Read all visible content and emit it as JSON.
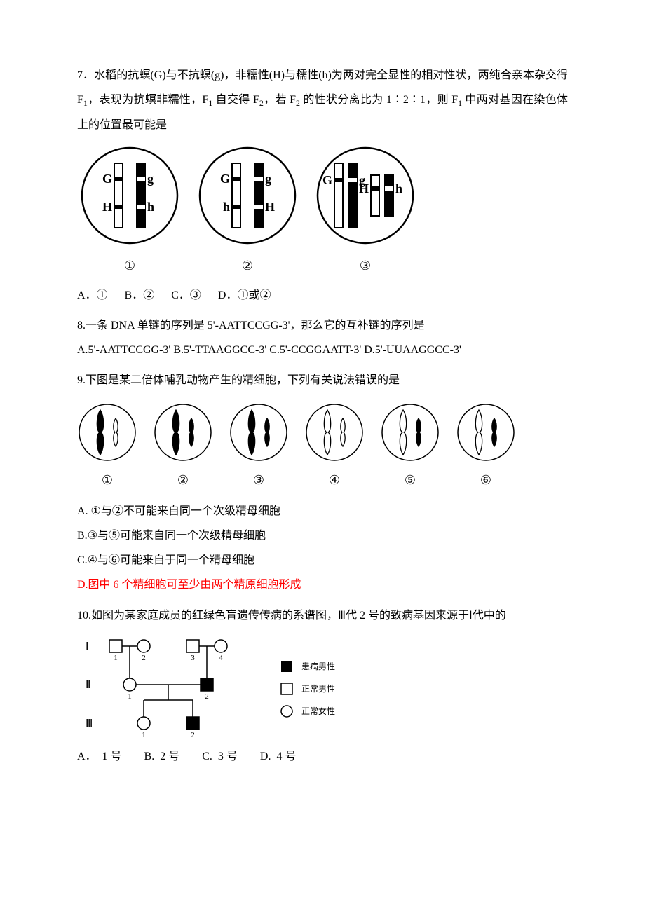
{
  "colors": {
    "text": "#000000",
    "red": "#ff0000",
    "bg": "#ffffff",
    "chrom_white": "#ffffff",
    "chrom_black": "#000000",
    "line": "#000000"
  },
  "q7": {
    "number": "7．",
    "text_before_f1": "水稻的抗螟(G)与不抗螟(g)，非糯性(H)与糯性(h)为两对完全显性的相对性状，两纯合亲本杂交得 F",
    "f1": "1",
    "text_mid1": "，表现为抗螟非糯性，F",
    "f1b": "1",
    "text_mid2": " 自交得 F",
    "f2": "2",
    "text_mid3": "，若 F",
    "f2b": "2",
    "text_mid4": " 的性状分离比为 1∶2∶1，则 F",
    "f1c": "1",
    "text_after": " 中两对基因在染色体上的位置最可能是",
    "diagrams": [
      {
        "left_top": "G",
        "left_bot": "H",
        "right_top": "g",
        "right_bot": "h",
        "label": "①",
        "same_pair": true
      },
      {
        "left_top": "G",
        "left_bot": "h",
        "right_top": "g",
        "right_bot": "H",
        "label": "②",
        "same_pair": true
      },
      {
        "left_top": "G",
        "left_bot": "H",
        "right_top": "g",
        "right_bot": "h",
        "label": "③",
        "same_pair": false
      }
    ],
    "options": "A．①      B．②      C．③      D．①或②"
  },
  "q8": {
    "number": "8.",
    "text": "一条 DNA 单链的序列是 5'-AATTCCGG-3'，那么它的互补链的序列是",
    "options": "A.5'-AATTCCGG-3'  B.5'-TTAAGGCC-3'   C.5'-CCGGAATT-3'  D.5'-UUAAGGCC-3'"
  },
  "q9": {
    "number": "9.",
    "text": "下图是某二倍体哺乳动物产生的精细胞，下列有关说法错误的是",
    "sperm": [
      {
        "label": "①",
        "big_black": true,
        "small_black": false
      },
      {
        "label": "②",
        "big_black": true,
        "small_black": true
      },
      {
        "label": "③",
        "big_black": true,
        "small_black": true
      },
      {
        "label": "④",
        "big_black": false,
        "small_black": false
      },
      {
        "label": "⑤",
        "big_black": false,
        "small_black": true
      },
      {
        "label": "⑥",
        "big_black": false,
        "small_black": true
      }
    ],
    "optA": "A. ①与②不可能来自同一个次级精母细胞",
    "optB": "B.③与⑤可能来自同一个次级精母细胞",
    "optC": "C.④与⑥可能来自于同一个精母细胞",
    "optD": "D.图中 6 个精细胞可至少由两个精原细胞形成"
  },
  "q10": {
    "number": "10.",
    "text": "如图为某家庭成员的红绿色盲遗传传病的系谱图，Ⅲ代 2 号的致病基因来源于Ⅰ代中的",
    "gen_labels": [
      "Ⅰ",
      "Ⅱ",
      "Ⅲ"
    ],
    "legend": {
      "affected_male": "患病男性",
      "normal_male": "正常男性",
      "normal_female": "正常女性"
    },
    "options": "A．  1 号        B.  2 号        C.  3 号        D.  4 号"
  }
}
